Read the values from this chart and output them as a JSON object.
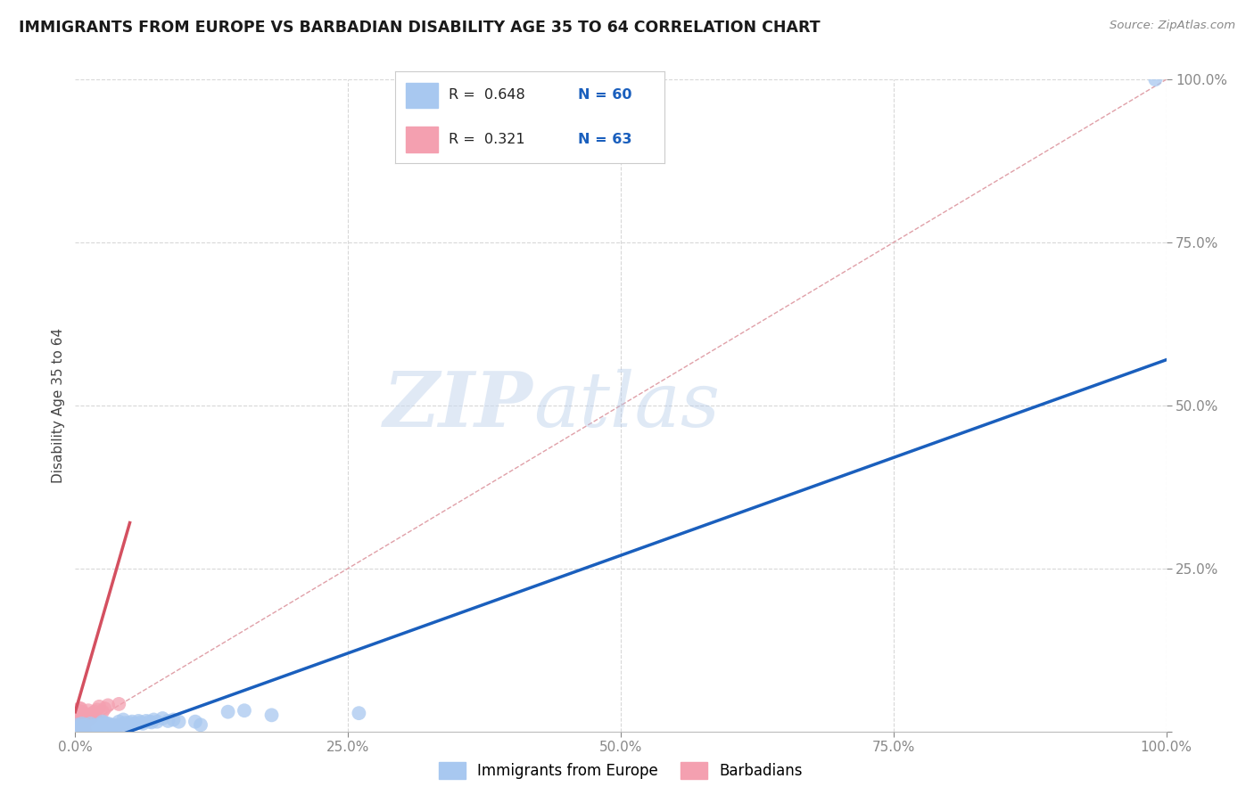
{
  "title": "IMMIGRANTS FROM EUROPE VS BARBADIAN DISABILITY AGE 35 TO 64 CORRELATION CHART",
  "source": "Source: ZipAtlas.com",
  "ylabel": "Disability Age 35 to 64",
  "xlim": [
    0,
    1.0
  ],
  "ylim": [
    0,
    1.0
  ],
  "xticks": [
    0.0,
    0.25,
    0.5,
    0.75,
    1.0
  ],
  "yticks": [
    0.0,
    0.25,
    0.5,
    0.75,
    1.0
  ],
  "xticklabels": [
    "0.0%",
    "25.0%",
    "50.0%",
    "75.0%",
    "100.0%"
  ],
  "yticklabels": [
    "",
    "25.0%",
    "50.0%",
    "75.0%",
    "100.0%"
  ],
  "legend1_label": "Immigrants from Europe",
  "legend2_label": "Barbadians",
  "r1": 0.648,
  "n1": 60,
  "r2": 0.321,
  "n2": 63,
  "color_blue": "#a8c8f0",
  "color_pink": "#f4a0b0",
  "line_blue": "#1a5fbd",
  "line_pink": "#d45060",
  "line_diag": "#e0a0a8",
  "watermark_zip": "ZIP",
  "watermark_atlas": "atlas",
  "background": "#ffffff",
  "grid_color": "#d8d8d8",
  "blue_line_x": [
    0.0,
    1.0
  ],
  "blue_line_y": [
    -0.03,
    0.57
  ],
  "pink_line_x": [
    0.0,
    0.05
  ],
  "pink_line_y": [
    0.03,
    0.32
  ],
  "blue_scatter": [
    [
      0.002,
      0.01
    ],
    [
      0.003,
      0.005
    ],
    [
      0.004,
      0.008
    ],
    [
      0.005,
      0.007
    ],
    [
      0.006,
      0.012
    ],
    [
      0.007,
      0.003
    ],
    [
      0.008,
      0.008
    ],
    [
      0.009,
      0.01
    ],
    [
      0.01,
      0.005
    ],
    [
      0.012,
      0.007
    ],
    [
      0.014,
      0.012
    ],
    [
      0.015,
      0.006
    ],
    [
      0.016,
      0.009
    ],
    [
      0.017,
      0.008
    ],
    [
      0.018,
      0.006
    ],
    [
      0.019,
      0.003
    ],
    [
      0.02,
      0.01
    ],
    [
      0.021,
      0.008
    ],
    [
      0.022,
      0.007
    ],
    [
      0.023,
      0.01
    ],
    [
      0.024,
      0.012
    ],
    [
      0.025,
      0.015
    ],
    [
      0.026,
      0.01
    ],
    [
      0.027,
      0.013
    ],
    [
      0.028,
      0.01
    ],
    [
      0.03,
      0.012
    ],
    [
      0.032,
      0.008
    ],
    [
      0.033,
      0.01
    ],
    [
      0.034,
      0.007
    ],
    [
      0.035,
      0.006
    ],
    [
      0.036,
      0.01
    ],
    [
      0.038,
      0.008
    ],
    [
      0.04,
      0.015
    ],
    [
      0.042,
      0.01
    ],
    [
      0.044,
      0.018
    ],
    [
      0.045,
      0.008
    ],
    [
      0.046,
      0.013
    ],
    [
      0.048,
      0.01
    ],
    [
      0.05,
      0.013
    ],
    [
      0.052,
      0.015
    ],
    [
      0.055,
      0.012
    ],
    [
      0.058,
      0.016
    ],
    [
      0.06,
      0.014
    ],
    [
      0.062,
      0.012
    ],
    [
      0.065,
      0.016
    ],
    [
      0.068,
      0.015
    ],
    [
      0.07,
      0.014
    ],
    [
      0.072,
      0.018
    ],
    [
      0.075,
      0.015
    ],
    [
      0.08,
      0.02
    ],
    [
      0.085,
      0.016
    ],
    [
      0.09,
      0.018
    ],
    [
      0.095,
      0.015
    ],
    [
      0.11,
      0.015
    ],
    [
      0.115,
      0.01
    ],
    [
      0.14,
      0.03
    ],
    [
      0.155,
      0.032
    ],
    [
      0.18,
      0.025
    ],
    [
      0.26,
      0.028
    ],
    [
      0.99,
      1.0
    ]
  ],
  "pink_scatter": [
    [
      0.001,
      0.0
    ],
    [
      0.001,
      0.003
    ],
    [
      0.001,
      0.008
    ],
    [
      0.001,
      0.012
    ],
    [
      0.001,
      0.018
    ],
    [
      0.001,
      0.022
    ],
    [
      0.002,
      0.005
    ],
    [
      0.002,
      0.01
    ],
    [
      0.002,
      0.015
    ],
    [
      0.002,
      0.018
    ],
    [
      0.002,
      0.022
    ],
    [
      0.002,
      0.028
    ],
    [
      0.002,
      0.032
    ],
    [
      0.003,
      0.008
    ],
    [
      0.003,
      0.012
    ],
    [
      0.003,
      0.015
    ],
    [
      0.003,
      0.018
    ],
    [
      0.003,
      0.022
    ],
    [
      0.003,
      0.025
    ],
    [
      0.003,
      0.03
    ],
    [
      0.004,
      0.01
    ],
    [
      0.004,
      0.015
    ],
    [
      0.004,
      0.018
    ],
    [
      0.004,
      0.025
    ],
    [
      0.004,
      0.03
    ],
    [
      0.004,
      0.035
    ],
    [
      0.005,
      0.012
    ],
    [
      0.005,
      0.018
    ],
    [
      0.005,
      0.022
    ],
    [
      0.005,
      0.028
    ],
    [
      0.005,
      0.035
    ],
    [
      0.006,
      0.015
    ],
    [
      0.006,
      0.018
    ],
    [
      0.006,
      0.022
    ],
    [
      0.006,
      0.025
    ],
    [
      0.006,
      0.03
    ],
    [
      0.007,
      0.015
    ],
    [
      0.007,
      0.02
    ],
    [
      0.007,
      0.025
    ],
    [
      0.008,
      0.018
    ],
    [
      0.008,
      0.022
    ],
    [
      0.008,
      0.028
    ],
    [
      0.009,
      0.015
    ],
    [
      0.009,
      0.02
    ],
    [
      0.009,
      0.0
    ],
    [
      0.01,
      0.015
    ],
    [
      0.01,
      0.02
    ],
    [
      0.012,
      0.018
    ],
    [
      0.013,
      0.022
    ],
    [
      0.014,
      0.025
    ],
    [
      0.015,
      0.022
    ],
    [
      0.016,
      0.028
    ],
    [
      0.018,
      0.03
    ],
    [
      0.02,
      0.033
    ],
    [
      0.022,
      0.038
    ],
    [
      0.025,
      0.03
    ],
    [
      0.027,
      0.035
    ],
    [
      0.03,
      0.04
    ],
    [
      0.04,
      0.042
    ],
    [
      0.012,
      0.032
    ],
    [
      0.001,
      0.025
    ],
    [
      0.002,
      0.0
    ],
    [
      0.003,
      0.0
    ]
  ]
}
